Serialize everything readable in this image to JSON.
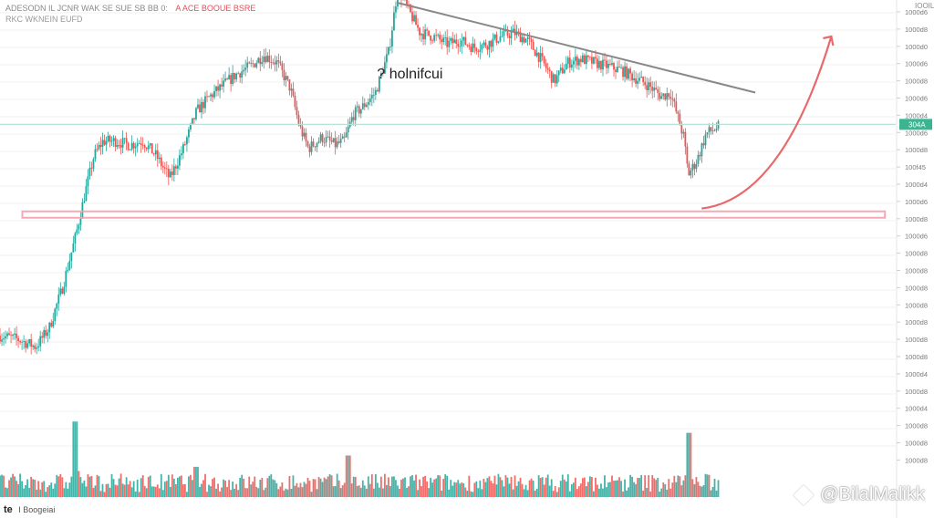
{
  "header": {
    "symbol_line": "ADESODN IL JCNR WAK SE SUE SB BB 0:",
    "tools": "A ACE  BOOUE BSRE",
    "sub_line": "RKC WKNEIN EUFD"
  },
  "footer": {
    "logo": "te",
    "label": "I Boogeiai"
  },
  "watermark": "@BilalMalikk",
  "annotation_label": "? holnifcui",
  "price_axis": {
    "top_label": "IOOIL",
    "ticks": [
      "1000d6",
      "1000d8",
      "1000d0",
      "1000d6",
      "1000d8",
      "1000d6",
      "1000d4",
      "1000d6",
      "1000d8",
      "100f45",
      "1000d4",
      "1000d6",
      "1000d8",
      "1000d6",
      "1000d8",
      "1000d8",
      "1000d8",
      "1000d8",
      "1000d8",
      "1000d8",
      "1000d8",
      "1000d4",
      "1000d8",
      "1000d4",
      "1000d8",
      "1000d8",
      "1000d8"
    ],
    "current_label": "304A"
  },
  "colors": {
    "up": "#26a69a",
    "down": "#ef5350",
    "trendline": "#888888",
    "support_zone": "#f4a0ae",
    "arrow": "#e8696b",
    "current_line": "#b8e3d4",
    "grid": "#f0f0f0"
  },
  "chart_data": {
    "type": "candlestick",
    "y_scale": [
      0,
      100
    ],
    "price_path": [
      [
        0,
        20
      ],
      [
        2,
        19
      ],
      [
        4,
        17
      ],
      [
        5.5,
        22
      ],
      [
        7,
        33
      ],
      [
        8.5,
        47
      ],
      [
        9.5,
        58
      ],
      [
        10.5,
        68
      ],
      [
        11.5,
        72
      ],
      [
        13,
        72
      ],
      [
        14.5,
        71
      ],
      [
        16,
        72
      ],
      [
        17.5,
        68
      ],
      [
        19,
        62
      ],
      [
        20.5,
        70
      ],
      [
        22,
        80
      ],
      [
        23.5,
        84
      ],
      [
        25,
        87
      ],
      [
        26.5,
        90
      ],
      [
        28,
        92
      ],
      [
        29.5,
        95
      ],
      [
        31,
        93
      ],
      [
        32.5,
        86
      ],
      [
        33.5,
        76
      ],
      [
        34.5,
        70
      ],
      [
        36,
        73
      ],
      [
        37.5,
        71
      ],
      [
        38.5,
        72
      ],
      [
        39.5,
        79
      ],
      [
        40.5,
        81
      ],
      [
        42,
        85
      ],
      [
        43.5,
        96
      ],
      [
        44.5,
        113
      ],
      [
        45.5,
        108
      ],
      [
        47,
        101
      ],
      [
        48.5,
        100
      ],
      [
        50,
        98
      ],
      [
        51.5,
        99
      ],
      [
        53,
        97
      ],
      [
        54.5,
        98
      ],
      [
        56,
        100
      ],
      [
        57.5,
        101
      ],
      [
        59,
        99
      ],
      [
        60.5,
        94
      ],
      [
        62,
        88
      ],
      [
        63.5,
        93
      ],
      [
        65,
        94
      ],
      [
        66.5,
        93
      ],
      [
        68,
        92
      ],
      [
        69.5,
        91
      ],
      [
        71,
        89
      ],
      [
        72.5,
        87
      ],
      [
        74,
        84
      ],
      [
        75,
        85
      ],
      [
        76.5,
        73
      ],
      [
        77,
        63
      ],
      [
        78,
        67
      ],
      [
        79,
        74
      ],
      [
        80.5,
        76
      ]
    ],
    "volume_spikes": [
      [
        8.5,
        100
      ],
      [
        77,
        85
      ],
      [
        39,
        55
      ],
      [
        22,
        40
      ]
    ],
    "trendline": {
      "from": [
        44.5,
        109
      ],
      "to": [
        84.5,
        85
      ]
    },
    "support_zone": {
      "from_x": 2.5,
      "to_x": 99,
      "y": 52.5
    },
    "current_price_y": 76.5,
    "arrow": {
      "from": [
        78.5,
        54
      ],
      "to": [
        93,
        100
      ]
    },
    "annotation_point": [
      43,
      90
    ]
  }
}
